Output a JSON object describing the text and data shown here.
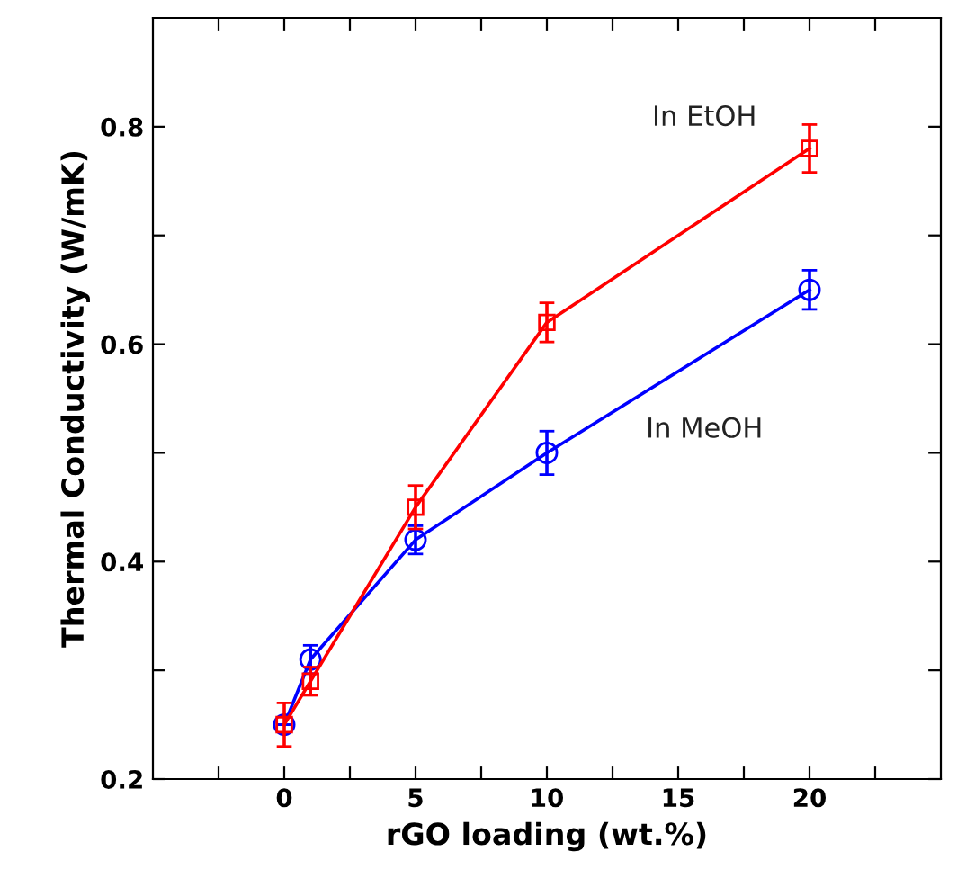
{
  "chart_data": {
    "type": "line",
    "xlabel": "rGO loading (wt.%)",
    "ylabel": "Thermal Conductivity (W/mK)",
    "x": [
      0,
      1,
      5,
      10,
      20
    ],
    "series": [
      {
        "name": "In EtOH",
        "color": "#ff0000",
        "marker": "square",
        "values": [
          0.25,
          0.29,
          0.45,
          0.62,
          0.78
        ],
        "errors": [
          0.02,
          0.013,
          0.02,
          0.018,
          0.022
        ]
      },
      {
        "name": "In MeOH",
        "color": "#0000ff",
        "marker": "circle",
        "values": [
          0.25,
          0.31,
          0.42,
          0.5,
          0.65
        ],
        "errors": [
          null,
          0.013,
          0.013,
          0.02,
          0.018
        ]
      }
    ],
    "xlim": [
      -5,
      25
    ],
    "xticks": [
      {
        "value": -2.5,
        "label": null
      },
      0,
      {
        "value": 2.5,
        "label": null
      },
      5,
      {
        "value": 7.5,
        "label": null
      },
      10,
      {
        "value": 12.5,
        "label": null
      },
      15,
      {
        "value": 17.5,
        "label": null
      },
      20,
      {
        "value": 22.5,
        "label": null
      }
    ],
    "ylim": [
      0.2,
      0.9
    ],
    "yticks": [
      0.2,
      {
        "value": 0.3,
        "label": null
      },
      0.4,
      {
        "value": 0.5,
        "label": null
      },
      0.6,
      {
        "value": 0.7,
        "label": null
      },
      0.8
    ],
    "grid": false,
    "legend": false,
    "line_style": "solid"
  }
}
